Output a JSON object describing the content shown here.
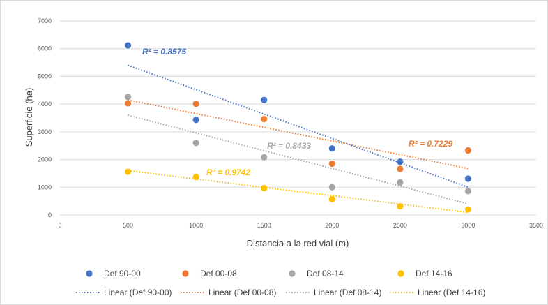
{
  "chart_data": {
    "type": "scatter",
    "xlabel": "Distancia a la red vial (m)",
    "ylabel": "Superficie (ha)",
    "xlim": [
      0,
      3500
    ],
    "ylim": [
      0,
      7000
    ],
    "x_ticks": [
      0,
      500,
      1000,
      1500,
      2000,
      2500,
      3000,
      3500
    ],
    "y_ticks": [
      0,
      1000,
      2000,
      3000,
      4000,
      5000,
      6000,
      7000
    ],
    "grid": true,
    "legend_position": "bottom",
    "series": [
      {
        "name": "Def 90-00",
        "color": "#4472C4",
        "x": [
          500,
          1000,
          1500,
          2000,
          2500,
          3000
        ],
        "y": [
          6120,
          3430,
          4150,
          2400,
          1920,
          1310
        ],
        "trendline": {
          "name": "Linear (Def 90-00)",
          "y_start": 5400,
          "y_end": 1000,
          "r2_label": "R² = 0.8575"
        }
      },
      {
        "name": "Def 00-08",
        "color": "#ED7D31",
        "x": [
          500,
          1000,
          1500,
          2000,
          2500,
          3000
        ],
        "y": [
          4030,
          4010,
          3460,
          1850,
          1660,
          2330
        ],
        "trendline": {
          "name": "Linear (Def 00-08)",
          "y_start": 4150,
          "y_end": 1680,
          "r2_label": "R² = 0.7229"
        }
      },
      {
        "name": "Def 08-14",
        "color": "#A5A5A5",
        "x": [
          500,
          1000,
          1500,
          2000,
          2500,
          3000
        ],
        "y": [
          4260,
          2600,
          2080,
          1000,
          1170,
          860
        ],
        "trendline": {
          "name": "Linear (Def 08-14)",
          "y_start": 3600,
          "y_end": 400,
          "r2_label": "R² = 0.8433"
        }
      },
      {
        "name": "Def 14-16",
        "color": "#FFC000",
        "x": [
          500,
          1000,
          1500,
          2000,
          2500,
          3000
        ],
        "y": [
          1560,
          1370,
          970,
          570,
          310,
          200
        ],
        "trendline": {
          "name": "Linear (Def 14-16)",
          "y_start": 1600,
          "y_end": 90,
          "r2_label": "R² = 0.9742"
        }
      }
    ]
  }
}
